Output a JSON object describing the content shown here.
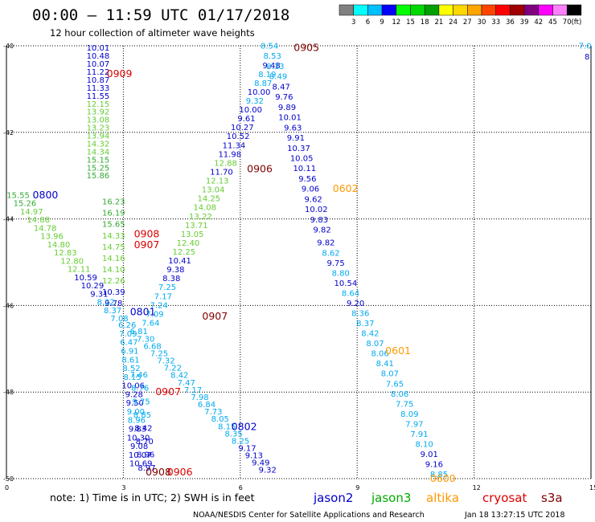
{
  "header": {
    "title": "00:00 – 11:59 UTC 01/17/2018",
    "subtitle": "12 hour collection of altimeter wave heights"
  },
  "color_scale": {
    "labels": [
      "3",
      "6",
      "9",
      "12",
      "15",
      "18",
      "21",
      "24",
      "27",
      "30",
      "33",
      "36",
      "39",
      "42",
      "45",
      "70"
    ],
    "unit": "(ft)",
    "colors": [
      "#808080",
      "#00ffff",
      "#00bfff",
      "#0000ff",
      "#00ff00",
      "#00d800",
      "#00a000",
      "#ffff00",
      "#ffd700",
      "#ffa500",
      "#ff4500",
      "#ff0000",
      "#a00000",
      "#800080",
      "#ff00ff",
      "#ff80ff",
      "#000000"
    ]
  },
  "footer": {
    "note": "note: 1) Time is in UTC; 2) SWH is in feet",
    "satellites": [
      {
        "name": "jason2",
        "color": "#0000cc"
      },
      {
        "name": "jason3",
        "color": "#00aa00"
      },
      {
        "name": "altika",
        "color": "#ff9900"
      },
      {
        "name": "cryosat",
        "color": "#dd0000"
      },
      {
        "name": "s3a",
        "color": "#800000"
      }
    ],
    "credit": "NOAA/NESDIS Center for Satellite Applications and Research",
    "timestamp": "Jan 18 13:27:15 UTC 2018"
  },
  "chart_data": {
    "type": "scatter",
    "x_ticks": [
      "0",
      "3",
      "6",
      "9",
      "12",
      "15"
    ],
    "y_ticks": [
      "-40",
      "-42",
      "-44",
      "-46",
      "-48",
      "-50"
    ],
    "xlim": [
      0,
      15
    ],
    "ylim": [
      -50,
      -40
    ],
    "pass_labels": [
      {
        "text": "0905",
        "x": 7.7,
        "y": -40.05,
        "sat": "s3a"
      },
      {
        "text": "0909",
        "x": 2.9,
        "y": -40.65,
        "sat": "cryosat"
      },
      {
        "text": "0800",
        "x": 1.0,
        "y": -43.45,
        "sat": "jason2"
      },
      {
        "text": "0906",
        "x": 6.5,
        "y": -42.85,
        "sat": "s3a"
      },
      {
        "text": "0602",
        "x": 8.7,
        "y": -43.3,
        "sat": "altika"
      },
      {
        "text": "0908",
        "x": 3.6,
        "y": -44.35,
        "sat": "cryosat"
      },
      {
        "text": "0907",
        "x": 3.6,
        "y": -44.6,
        "sat": "cryosat"
      },
      {
        "text": "0801",
        "x": 3.5,
        "y": -46.15,
        "sat": "jason2"
      },
      {
        "text": "0907",
        "x": 5.35,
        "y": -46.25,
        "sat": "s3a"
      },
      {
        "text": "0601",
        "x": 10.05,
        "y": -47.05,
        "sat": "altika"
      },
      {
        "text": "0907",
        "x": 4.15,
        "y": -48.0,
        "sat": "cryosat"
      },
      {
        "text": "0802",
        "x": 6.1,
        "y": -48.8,
        "sat": "jason2"
      },
      {
        "text": "0906",
        "x": 4.45,
        "y": -49.85,
        "sat": "cryosat"
      },
      {
        "text": "0908",
        "x": 3.9,
        "y": -49.85,
        "sat": "s3a"
      },
      {
        "text": "0600",
        "x": 11.2,
        "y": -50.0,
        "sat": "altika"
      }
    ],
    "tracks": [
      {
        "id": "0909",
        "x0": 2.35,
        "x1": 2.35,
        "y0": -40.05,
        "y1": -43.0,
        "values": [
          "10.01",
          "10.48",
          "10.07",
          "11.22",
          "10.87",
          "11.33",
          "11.55",
          "12.15",
          "13.92",
          "13.08",
          "13.23",
          "13.94",
          "14.32",
          "14.34",
          "15.15",
          "15.25",
          "15.86"
        ],
        "colors": [
          "#0000cc",
          "#0000cc",
          "#0000cc",
          "#0000cc",
          "#0000cc",
          "#0000cc",
          "#0000cc",
          "#66cc33",
          "#66cc33",
          "#66cc33",
          "#66cc33",
          "#66cc33",
          "#66cc33",
          "#66cc33",
          "#33aa33",
          "#33aa33",
          "#33aa33"
        ]
      },
      {
        "id": "0907",
        "x0": 2.75,
        "x1": 2.75,
        "y0": -43.6,
        "y1": -45.95,
        "values": [
          "16.23",
          "16.19",
          "15.65",
          "14.33",
          "14.75",
          "14.16",
          "14.10",
          "12.26",
          "10.39",
          "9.78"
        ],
        "colors": [
          "#33aa33",
          "#33aa33",
          "#33aa33",
          "#66cc33",
          "#66cc33",
          "#66cc33",
          "#66cc33",
          "#66cc33",
          "#0000cc",
          "#0000cc"
        ]
      },
      {
        "id": "0800",
        "x0": 0.3,
        "x1": 2.9,
        "y0": -43.45,
        "y1": -46.3,
        "values": [
          "15.55",
          "15.26",
          "14.97",
          "14.88",
          "14.78",
          "13.96",
          "14.80",
          "12.83",
          "12.80",
          "12.11",
          "10.59",
          "10.29",
          "9.31",
          "8.22",
          "8.37",
          "7.08"
        ],
        "colors": [
          "#33aa33",
          "#33aa33",
          "#66cc33",
          "#66cc33",
          "#66cc33",
          "#66cc33",
          "#66cc33",
          "#66cc33",
          "#66cc33",
          "#66cc33",
          "#0000cc",
          "#0000cc",
          "#0000cc",
          "#00aaee",
          "#00aaee",
          "#00aaee"
        ]
      },
      {
        "id": "0801",
        "x0": 3.1,
        "x1": 3.45,
        "y0": -46.45,
        "y1": -49.65,
        "values": [
          "6.26",
          "7.09",
          "6.47",
          "6.91",
          "8.61",
          "8.52",
          "8.15",
          "10.06",
          "9.28",
          "9.50",
          "9.00",
          "8.96",
          "9.83",
          "10.30",
          "9.08",
          "10.07",
          "10.69"
        ],
        "colors": [
          "#00aaee",
          "#00aaee",
          "#00aaee",
          "#00aaee",
          "#00aaee",
          "#00aaee",
          "#00aaee",
          "#0000cc",
          "#0000cc",
          "#0000cc",
          "#00aaee",
          "#00aaee",
          "#0000cc",
          "#0000cc",
          "#0000cc",
          "#0000cc",
          "#0000cc"
        ]
      },
      {
        "id": "0906",
        "x0": 3.7,
        "x1": 6.8,
        "y0": -46.4,
        "y1": -40.45,
        "values": [
          "7.64",
          "7.09",
          "7.24",
          "7.17",
          "7.25",
          "8.38",
          "9.38",
          "10.41",
          "12.25",
          "12.40",
          "13.05",
          "13.71",
          "13.22",
          "14.08",
          "14.25",
          "13.04",
          "12.13",
          "11.70",
          "12.88",
          "11.98",
          "11.34",
          "10.52",
          "10.27",
          "9.61",
          "10.00",
          "9.32",
          "10.00",
          "8.87",
          "8.19",
          "9.48"
        ],
        "colors": [
          "#00aaee",
          "#00aaee",
          "#00aaee",
          "#00aaee",
          "#00aaee",
          "#0000cc",
          "#0000cc",
          "#0000cc",
          "#66cc33",
          "#66cc33",
          "#66cc33",
          "#66cc33",
          "#66cc33",
          "#66cc33",
          "#66cc33",
          "#66cc33",
          "#66cc33",
          "#0000cc",
          "#66cc33",
          "#0000cc",
          "#0000cc",
          "#0000cc",
          "#0000cc",
          "#0000cc",
          "#0000cc",
          "#00aaee",
          "#0000cc",
          "#00aaee",
          "#00aaee",
          "#0000cc"
        ]
      },
      {
        "id": "0905",
        "x0": 6.75,
        "x1": 8.1,
        "y0": -40.0,
        "y1": -44.25,
        "values": [
          "8.54",
          "8.53",
          "8.33",
          "8.49",
          "8.47",
          "9.76",
          "9.89",
          "10.01",
          "9.63",
          "9.91",
          "10.37",
          "10.05",
          "10.11",
          "9.56",
          "9.06",
          "9.62",
          "10.02",
          "9.83",
          "9.82"
        ],
        "colors": [
          "#00aaee",
          "#00aaee",
          "#00aaee",
          "#00aaee",
          "#0000cc",
          "#0000cc",
          "#0000cc",
          "#0000cc",
          "#0000cc",
          "#0000cc",
          "#0000cc",
          "#0000cc",
          "#0000cc",
          "#0000cc",
          "#0000cc",
          "#0000cc",
          "#0000cc",
          "#0000cc",
          "#0000cc"
        ]
      },
      {
        "id": "0602",
        "x0": 8.2,
        "x1": 11.1,
        "y0": -44.55,
        "y1": -49.9,
        "values": [
          "9.82",
          "8.62",
          "9.75",
          "8.80",
          "10.54",
          "8.64",
          "9.20",
          "8.36",
          "8.37",
          "8.42",
          "8.07",
          "8.06",
          "8.41",
          "8.07",
          "7.65",
          "8.06",
          "7.75",
          "8.09",
          "7.97",
          "7.91",
          "8.10",
          "9.01",
          "9.16",
          "8.85"
        ],
        "colors": [
          "#0000cc",
          "#00aaee",
          "#0000cc",
          "#00aaee",
          "#0000cc",
          "#00aaee",
          "#0000cc",
          "#00aaee",
          "#00aaee",
          "#00aaee",
          "#00aaee",
          "#00aaee",
          "#00aaee",
          "#00aaee",
          "#00aaee",
          "#00aaee",
          "#00aaee",
          "#00aaee",
          "#00aaee",
          "#00aaee",
          "#00aaee",
          "#0000cc",
          "#0000cc",
          "#00aaee"
        ]
      },
      {
        "id": "0907b",
        "x0": 3.4,
        "x1": 6.7,
        "y0": -46.6,
        "y1": -49.8,
        "values": [
          "6.81",
          "7.30",
          "6.68",
          "7.25",
          "7.32",
          "7.22",
          "8.42",
          "7.47",
          "7.17",
          "7.98",
          "6.84",
          "7.73",
          "8.05",
          "8.15",
          "8.35",
          "8.25",
          "9.17",
          "9.13",
          "9.49",
          "9.32"
        ],
        "colors": [
          "#00aaee",
          "#00aaee",
          "#00aaee",
          "#00aaee",
          "#00aaee",
          "#00aaee",
          "#00aaee",
          "#00aaee",
          "#00aaee",
          "#00aaee",
          "#00aaee",
          "#00aaee",
          "#00aaee",
          "#00aaee",
          "#00aaee",
          "#00aaee",
          "#0000cc",
          "#0000cc",
          "#0000cc",
          "#0000cc"
        ]
      },
      {
        "id": "0908b",
        "x0": 3.4,
        "x1": 3.6,
        "y0": -47.6,
        "y1": -49.75,
        "values": [
          "7.46",
          "8.76",
          "9.75",
          "8.85",
          "8.42",
          "8.70",
          "8.96",
          "8.97"
        ],
        "colors": [
          "#00aaee",
          "#00aaee",
          "#00aaee",
          "#00aaee",
          "#0000cc",
          "#0000cc",
          "#0000cc",
          "#0000cc"
        ]
      },
      {
        "id": "edge",
        "x0": 14.85,
        "x1": 14.9,
        "y0": -40.0,
        "y1": -40.25,
        "values": [
          "7.0",
          "8"
        ],
        "colors": [
          "#00aaee",
          "#0000cc"
        ]
      }
    ]
  }
}
